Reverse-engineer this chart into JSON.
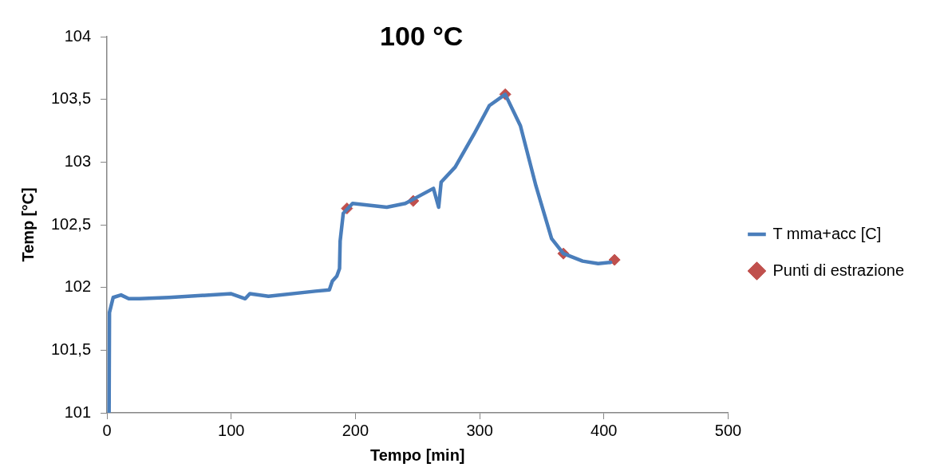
{
  "chart_data": {
    "type": "line",
    "title": "100 °C",
    "xlabel": "Tempo [min]",
    "ylabel": "Temp [°C]",
    "xlim": [
      0,
      500
    ],
    "xticks": [
      0,
      100,
      200,
      300,
      400,
      500
    ],
    "ylim": [
      101,
      104
    ],
    "yticks": [
      101,
      {
        "value": 101.5,
        "label": "101,5"
      },
      102,
      {
        "value": 102.5,
        "label": "102,5"
      },
      103,
      {
        "value": 103.5,
        "label": "103,5"
      },
      104
    ],
    "grid": false,
    "legend": "right",
    "series": [
      {
        "name": "T mma+acc [C]",
        "type": "line",
        "color": "#4a7ebb",
        "marker": "none",
        "line_style": "solid",
        "x": [
          1.7,
          2,
          5,
          11.3,
          17.5,
          26.3,
          50,
          100,
          111.3,
          115,
          130,
          167.7,
          179,
          181.4,
          185,
          187.2,
          187.7,
          190.2,
          197.7,
          225.2,
          240.2,
          262.8,
          267,
          269,
          280.3,
          295.3,
          307.8,
          320.6,
          332.8,
          345.3,
          357.9,
          367.4,
          382.9,
          395.4,
          405.4
        ],
        "values": [
          101.01,
          101.8,
          101.92,
          101.94,
          101.91,
          101.91,
          101.92,
          101.95,
          101.91,
          101.95,
          101.93,
          101.97,
          101.98,
          102.05,
          102.09,
          102.15,
          102.37,
          102.59,
          102.67,
          102.64,
          102.67,
          102.79,
          102.64,
          102.84,
          102.96,
          103.22,
          103.45,
          103.54,
          103.29,
          102.81,
          102.39,
          102.27,
          102.21,
          102.19,
          102.2
        ]
      },
      {
        "name": "Punti di estrazione",
        "type": "scatter",
        "color": "#c0504d",
        "marker": "diamond",
        "x": [
          193.2,
          246.5,
          320.6,
          367.4,
          408.6
        ],
        "values": [
          102.63,
          102.69,
          103.54,
          102.27,
          102.22
        ]
      }
    ]
  }
}
